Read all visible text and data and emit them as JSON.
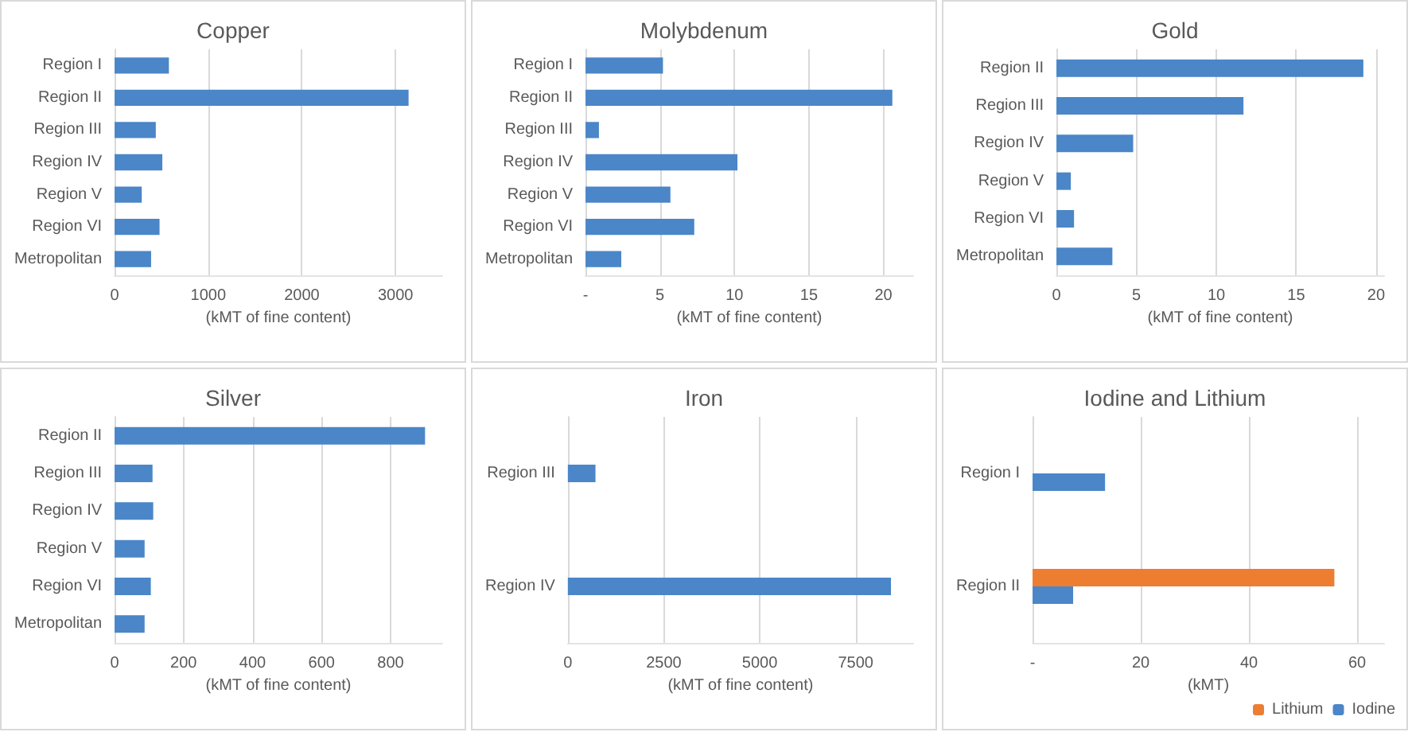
{
  "chart_data": [
    {
      "type": "bar",
      "orientation": "horizontal",
      "title": "Copper",
      "xlabel": "(kMT of fine content)",
      "categories": [
        "Region I",
        "Region II",
        "Region III",
        "Region IV",
        "Region V",
        "Region VI",
        "Metropolitan"
      ],
      "values": [
        580,
        3140,
        440,
        510,
        290,
        480,
        390
      ],
      "color": "#4a86c8",
      "xlim": [
        0,
        3500
      ],
      "xticks": [
        0,
        1000,
        2000,
        3000
      ],
      "grid": "x"
    },
    {
      "type": "bar",
      "orientation": "horizontal",
      "title": "Molybdenum",
      "xlabel": "(kMT of fine content)",
      "categories": [
        "Region I",
        "Region II",
        "Region III",
        "Region IV",
        "Region V",
        "Region VI",
        "Metropolitan"
      ],
      "values": [
        5.2,
        20.6,
        0.9,
        10.2,
        5.7,
        7.3,
        2.4
      ],
      "color": "#4a86c8",
      "xlim": [
        0,
        22
      ],
      "xticks": [
        {
          "value": 0,
          "label": "-"
        },
        5,
        10,
        15,
        20
      ],
      "grid": "x"
    },
    {
      "type": "bar",
      "orientation": "horizontal",
      "title": "Gold",
      "xlabel": "(kMT of fine content)",
      "categories": [
        "Region II",
        "Region III",
        "Region IV",
        "Region V",
        "Region VI",
        "Metropolitan"
      ],
      "values": [
        19.2,
        11.7,
        4.8,
        0.9,
        1.1,
        3.5
      ],
      "color": "#4a86c8",
      "xlim": [
        0,
        20.5
      ],
      "xticks": [
        0,
        5,
        10,
        15,
        20
      ],
      "grid": "x"
    },
    {
      "type": "bar",
      "orientation": "horizontal",
      "title": "Silver",
      "xlabel": "(kMT of fine content)",
      "categories": [
        "Region II",
        "Region III",
        "Region IV",
        "Region V",
        "Region VI",
        "Metropolitan"
      ],
      "values": [
        900,
        110,
        112,
        87,
        105,
        87
      ],
      "color": "#4a86c8",
      "xlim": [
        0,
        950
      ],
      "xticks": [
        0,
        200,
        400,
        600,
        800
      ],
      "grid": "x"
    },
    {
      "type": "bar",
      "orientation": "horizontal",
      "title": "Iron",
      "xlabel": "(kMT of fine content)",
      "categories": [
        "Region III",
        "Region IV"
      ],
      "values": [
        720,
        8420
      ],
      "color": "#4a86c8",
      "xlim": [
        0,
        9000
      ],
      "xticks": [
        0,
        2500,
        5000,
        7500
      ],
      "grid": "x"
    },
    {
      "type": "bar",
      "orientation": "horizontal",
      "title": "Iodine and Lithium",
      "xlabel": "(kMT)",
      "categories": [
        "Region I",
        "Region II"
      ],
      "series": [
        {
          "name": "Lithium",
          "color": "#ed7d31",
          "values": [
            null,
            55.8
          ]
        },
        {
          "name": "Iodine",
          "color": "#4a86c8",
          "values": [
            13.4,
            7.5
          ]
        }
      ],
      "xlim": [
        0,
        65
      ],
      "xticks": [
        {
          "value": 0,
          "label": "-"
        },
        20,
        40,
        60
      ],
      "grid": "x",
      "legend": "bottom right"
    }
  ]
}
